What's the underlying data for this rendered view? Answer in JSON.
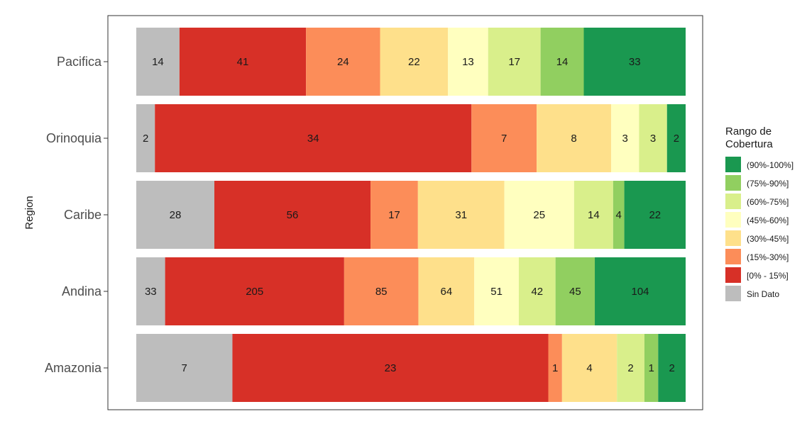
{
  "chart_data": {
    "type": "bar",
    "orientation": "horizontal",
    "stacked": "percent",
    "ylabel": "Region",
    "xlabel": "",
    "categories": [
      "Pacifica",
      "Orinoquia",
      "Caribe",
      "Andina",
      "Amazonia"
    ],
    "series": [
      {
        "name": "Sin Dato",
        "color": "#bdbdbd",
        "values": [
          14,
          2,
          28,
          33,
          7
        ]
      },
      {
        "name": "[0% - 15%]",
        "color": "#d73027",
        "values": [
          41,
          34,
          56,
          205,
          23
        ]
      },
      {
        "name": "(15%-30%]",
        "color": "#fc8d59",
        "values": [
          24,
          7,
          17,
          85,
          1
        ]
      },
      {
        "name": "(30%-45%]",
        "color": "#fee08b",
        "values": [
          22,
          8,
          31,
          64,
          4
        ]
      },
      {
        "name": "(45%-60%]",
        "color": "#ffffbf",
        "values": [
          13,
          3,
          25,
          51,
          0
        ]
      },
      {
        "name": "(60%-75%]",
        "color": "#d9ef8b",
        "values": [
          17,
          3,
          14,
          42,
          2
        ]
      },
      {
        "name": "(75%-90%]",
        "color": "#91cf60",
        "values": [
          14,
          0,
          4,
          45,
          1
        ]
      },
      {
        "name": "(90%-100%]",
        "color": "#1a9850",
        "values": [
          33,
          2,
          22,
          104,
          2
        ]
      }
    ],
    "legend": {
      "title_lines": [
        "Rango de",
        "Cobertura"
      ],
      "order": [
        "(90%-100%]",
        "(75%-90%]",
        "(60%-75%]",
        "(45%-60%]",
        "(30%-45%]",
        "(15%-30%]",
        "[0% - 15%]",
        "Sin Dato"
      ],
      "placement": "right"
    },
    "grid": false
  }
}
